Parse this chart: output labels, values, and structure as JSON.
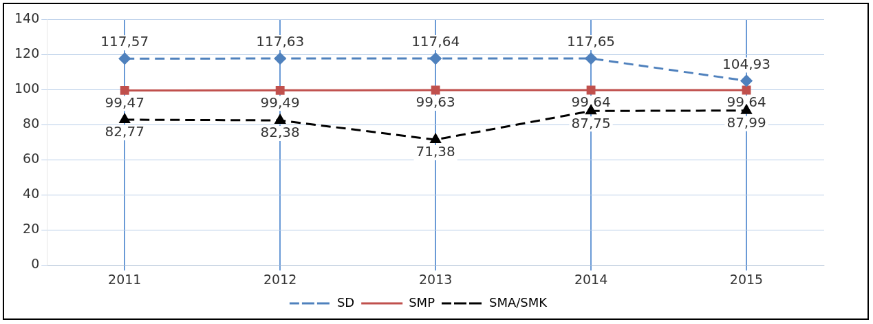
{
  "chart_data": {
    "type": "line",
    "categories": [
      "2011",
      "2012",
      "2013",
      "2014",
      "2015"
    ],
    "series": [
      {
        "name": "SD",
        "color": "#4f81bd",
        "values": [
          117.57,
          117.63,
          117.64,
          117.65,
          104.93
        ],
        "marker": "diamond",
        "line_style": "dashed",
        "value_labels": [
          "117,57",
          "117,63",
          "117,64",
          "117,65",
          "104,93"
        ]
      },
      {
        "name": "SMP",
        "color": "#c0504d",
        "values": [
          99.47,
          99.49,
          99.63,
          99.64,
          99.64
        ],
        "marker": "square",
        "line_style": "solid",
        "value_labels": [
          "99,47",
          "99,49",
          "99,63",
          "99,64",
          "99,64"
        ]
      },
      {
        "name": "SMA/SMK",
        "color": "#000000",
        "values": [
          82.77,
          82.38,
          71.38,
          87.75,
          87.99
        ],
        "marker": "triangle",
        "line_style": "dashed",
        "value_labels": [
          "82,77",
          "82,38",
          "71,38",
          "87,75",
          "87,99"
        ]
      }
    ],
    "ylim": [
      0,
      140
    ],
    "yticks": [
      0,
      20,
      40,
      60,
      80,
      100,
      120,
      140
    ],
    "grid": true,
    "legend": "bottom"
  }
}
